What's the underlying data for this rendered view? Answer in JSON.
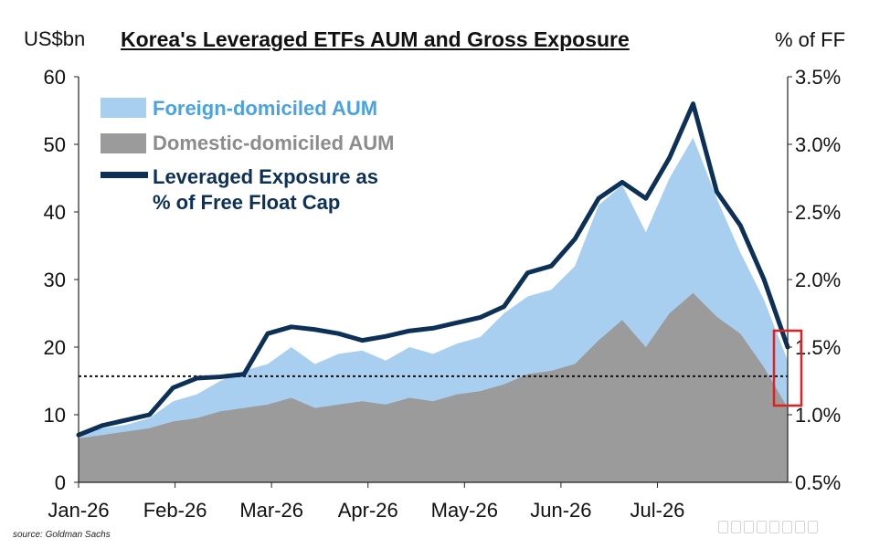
{
  "chart_data": {
    "type": "area",
    "title": "Korea's Leveraged ETFs AUM and Gross Exposure",
    "ylabel_left": "US$bn",
    "ylabel_right": "% of FF",
    "ylim_left": [
      0,
      60
    ],
    "ylim_right": [
      0.5,
      3.5
    ],
    "yticks_left": [
      "0",
      "10",
      "20",
      "30",
      "40",
      "50",
      "60"
    ],
    "yticks_right": [
      "0.5%",
      "1.0%",
      "1.5%",
      "2.0%",
      "2.5%",
      "3.0%",
      "3.5%"
    ],
    "x_tick_labels": [
      "Jan-26",
      "Feb-26",
      "Mar-26",
      "Apr-26",
      "May-26",
      "Jun-26",
      "Jul-26"
    ],
    "x": [
      0,
      7,
      14,
      21,
      28,
      35,
      42,
      49,
      56,
      63,
      70,
      77,
      84,
      91,
      98,
      105,
      112,
      119,
      126,
      133,
      140,
      147,
      154,
      161,
      168,
      175,
      182,
      189,
      196,
      203,
      210
    ],
    "series": [
      {
        "name": "Domestic-domiciled AUM",
        "color": "#9b9b9b",
        "axis": "left",
        "values": [
          6.5,
          7.0,
          7.5,
          8.0,
          9.0,
          9.5,
          10.5,
          11.0,
          11.5,
          12.5,
          11.0,
          11.5,
          12.0,
          11.5,
          12.5,
          12.0,
          13.0,
          13.5,
          14.5,
          16.0,
          16.5,
          17.5,
          21.0,
          24.0,
          20.0,
          25.0,
          28.0,
          24.5,
          22.0,
          17.0,
          11.0
        ]
      },
      {
        "name": "Foreign-domiciled AUM",
        "color": "#a9cff0",
        "axis": "left",
        "stacked_total_values": [
          7.0,
          8.0,
          8.5,
          9.5,
          12.0,
          13.0,
          15.0,
          16.5,
          17.5,
          20.0,
          17.5,
          19.0,
          19.5,
          18.0,
          20.0,
          19.0,
          20.5,
          21.5,
          25.0,
          27.5,
          28.5,
          32.0,
          41.0,
          44.0,
          37.0,
          45.0,
          51.0,
          42.0,
          34.0,
          27.0,
          18.0
        ]
      },
      {
        "name": "Leveraged Exposure as % of Free Float Cap",
        "color": "#0d3057",
        "axis": "right",
        "values": [
          0.85,
          0.92,
          0.96,
          1.0,
          1.2,
          1.27,
          1.28,
          1.3,
          1.6,
          1.65,
          1.63,
          1.6,
          1.55,
          1.58,
          1.62,
          1.64,
          1.68,
          1.72,
          1.8,
          2.05,
          2.1,
          2.3,
          2.6,
          2.72,
          2.6,
          2.9,
          3.3,
          2.65,
          2.4,
          2.0,
          1.5
        ]
      }
    ],
    "reference_line": {
      "value": 15.7,
      "axis": "left",
      "style": "dotted"
    },
    "legend_position": "top-left",
    "grid": false
  },
  "legend": {
    "foreign": "Foreign-domiciled AUM",
    "domestic": "Domestic-domiciled AUM",
    "exposure_line1": "Leveraged Exposure as",
    "exposure_line2": "% of Free Float Cap"
  },
  "colors": {
    "foreign": "#a9cff0",
    "domestic": "#9b9b9b",
    "exposure": "#0d3057",
    "foreign_text": "#4aa3e0",
    "domestic_text": "#8c8c8c",
    "highlight_box": "#e02020"
  },
  "source_text": "source: Goldman Sachs"
}
